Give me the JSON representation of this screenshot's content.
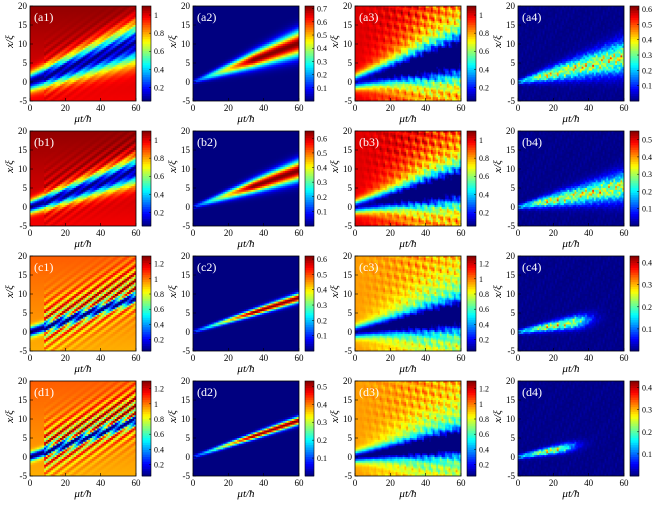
{
  "chart_data": {
    "type": "heatmap",
    "title": "",
    "xlabel": "μt/ħ",
    "ylabel": "x/ξ",
    "xlim": [
      0,
      60
    ],
    "ylim": [
      -5,
      20
    ],
    "x_ticks": [
      "0",
      "20",
      "40",
      "60"
    ],
    "y_ticks": [
      "-5",
      "0",
      "5",
      "10",
      "15",
      "20"
    ],
    "colormap": "jet",
    "panels": [
      {
        "id": "a1",
        "label": "(a1)",
        "kind": "density",
        "slope": 0.17,
        "width": 2.2,
        "spread": 0.045,
        "fringe": 0.1,
        "cbar_ticks": [
          "0.2",
          "0.4",
          "0.6",
          "0.8",
          "1"
        ],
        "vmin": 0.05,
        "vmax": 1.1
      },
      {
        "id": "a2",
        "label": "(a2)",
        "kind": "deplete",
        "slope": 0.17,
        "width": 0.5,
        "spread": 0.045,
        "cbar_ticks": [
          "0.1",
          "0.2",
          "0.3",
          "0.4",
          "0.5",
          "0.6",
          "0.7"
        ],
        "vmin": 0.0,
        "vmax": 0.72
      },
      {
        "id": "a3",
        "label": "(a3)",
        "kind": "density_noisy",
        "slope": 0.12,
        "width": 1.8,
        "spread": 0.06,
        "cbar_ticks": [
          "0.2",
          "0.4",
          "0.6",
          "0.8",
          "1"
        ],
        "vmin": 0.05,
        "vmax": 1.1
      },
      {
        "id": "a4",
        "label": "(a4)",
        "kind": "deplete_noisy",
        "slope": 0.11,
        "width": 0.6,
        "spread": 0.06,
        "cbar_ticks": [
          "0.1",
          "0.2",
          "0.3",
          "0.4",
          "0.5",
          "0.6"
        ],
        "vmin": 0.0,
        "vmax": 0.62
      },
      {
        "id": "b1",
        "label": "(b1)",
        "kind": "density",
        "slope": 0.16,
        "width": 1.6,
        "spread": 0.03,
        "fringe": 0.1,
        "cbar_ticks": [
          "0.2",
          "0.4",
          "0.6",
          "0.8",
          "1"
        ],
        "vmin": 0.05,
        "vmax": 1.1
      },
      {
        "id": "b2",
        "label": "(b2)",
        "kind": "deplete",
        "slope": 0.16,
        "width": 0.5,
        "spread": 0.035,
        "cbar_ticks": [
          "0.1",
          "0.2",
          "0.3",
          "0.4",
          "0.5",
          "0.6"
        ],
        "vmin": 0.0,
        "vmax": 0.65
      },
      {
        "id": "b3",
        "label": "(b3)",
        "kind": "density_noisy",
        "slope": 0.1,
        "width": 1.6,
        "spread": 0.05,
        "cbar_ticks": [
          "0.2",
          "0.4",
          "0.6",
          "0.8",
          "1"
        ],
        "vmin": 0.05,
        "vmax": 1.1
      },
      {
        "id": "b4",
        "label": "(b4)",
        "kind": "deplete_noisy",
        "slope": 0.09,
        "width": 0.6,
        "spread": 0.05,
        "cbar_ticks": [
          "0.1",
          "0.2",
          "0.3",
          "0.4",
          "0.5"
        ],
        "vmin": 0.0,
        "vmax": 0.55
      },
      {
        "id": "c1",
        "label": "(c1)",
        "kind": "density",
        "slope": 0.15,
        "width": 1.2,
        "spread": 0.0,
        "fringe": 0.35,
        "base": 0.95,
        "cbar_ticks": [
          "0.2",
          "0.4",
          "0.6",
          "0.8",
          "1",
          "1.2"
        ],
        "vmin": 0.05,
        "vmax": 1.3
      },
      {
        "id": "c2",
        "label": "(c2)",
        "kind": "deplete",
        "slope": 0.15,
        "width": 0.45,
        "spread": 0.012,
        "cbar_ticks": [
          "0.1",
          "0.2",
          "0.3",
          "0.4",
          "0.5",
          "0.6"
        ],
        "vmin": 0.0,
        "vmax": 0.62
      },
      {
        "id": "c3",
        "label": "(c3)",
        "kind": "density_noisy",
        "slope": 0.08,
        "width": 1.5,
        "spread": 0.04,
        "base": 0.95,
        "cbar_ticks": [
          "0.2",
          "0.4",
          "0.6",
          "0.8",
          "1",
          "1.2"
        ],
        "vmin": 0.05,
        "vmax": 1.3
      },
      {
        "id": "c4",
        "label": "(c4)",
        "kind": "deplete_noisy",
        "slope": 0.08,
        "width": 0.6,
        "spread": 0.03,
        "fade": 30,
        "cbar_ticks": [
          "0.1",
          "0.2",
          "0.3",
          "0.4"
        ],
        "vmin": 0.0,
        "vmax": 0.43
      },
      {
        "id": "d1",
        "label": "(d1)",
        "kind": "density",
        "slope": 0.16,
        "width": 1.1,
        "spread": 0.0,
        "fringe": 0.4,
        "base": 0.95,
        "cbar_ticks": [
          "0.2",
          "0.4",
          "0.6",
          "0.8",
          "1",
          "1.2"
        ],
        "vmin": 0.05,
        "vmax": 1.3
      },
      {
        "id": "d2",
        "label": "(d2)",
        "kind": "deplete",
        "slope": 0.16,
        "width": 0.45,
        "spread": 0.01,
        "cbar_ticks": [
          "0.1",
          "0.2",
          "0.3",
          "0.4",
          "0.5"
        ],
        "vmin": 0.0,
        "vmax": 0.53
      },
      {
        "id": "d3",
        "label": "(d3)",
        "kind": "density_noisy",
        "slope": 0.07,
        "width": 1.4,
        "spread": 0.035,
        "base": 0.95,
        "cbar_ticks": [
          "0.2",
          "0.4",
          "0.6",
          "0.8",
          "1",
          "1.2"
        ],
        "vmin": 0.05,
        "vmax": 1.3
      },
      {
        "id": "d4",
        "label": "(d4)",
        "kind": "deplete_noisy",
        "slope": 0.09,
        "width": 0.6,
        "spread": 0.02,
        "fade": 22,
        "cbar_ticks": [
          "0.1",
          "0.2",
          "0.3",
          "0.4"
        ],
        "vmin": 0.0,
        "vmax": 0.43
      }
    ]
  }
}
